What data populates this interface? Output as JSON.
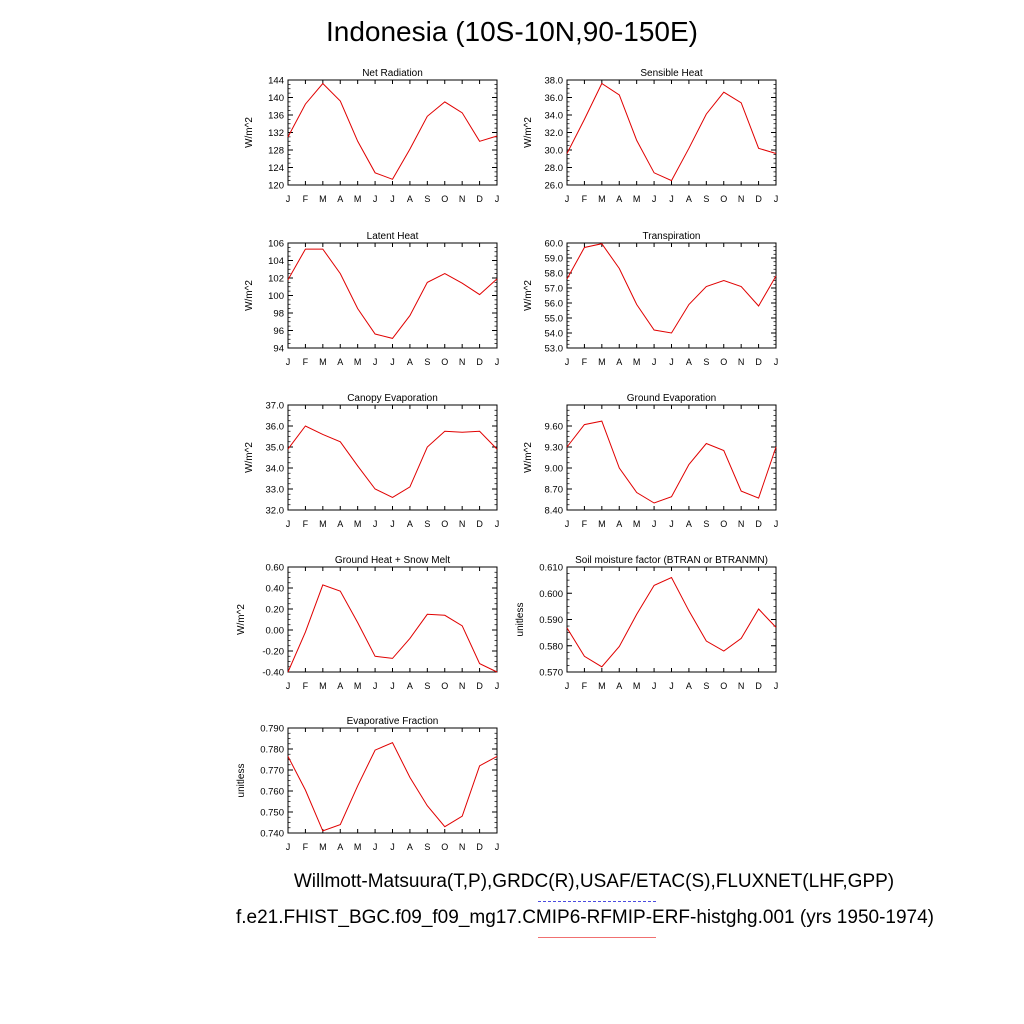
{
  "title": "Indonesia (10S-10N,90-150E)",
  "footer": {
    "obs": "Willmott-Matsuura(T,P),GRDC(R),USAF/ETAC(S),FLUXNET(LHF,GPP)",
    "case": "f.e21.FHIST_BGC.f09_f09_mg17.CMIP6-RFMIP-ERF-histghg.001 (yrs 1950-1974)"
  },
  "colors": {
    "line": "#e00000",
    "obs_dash": "#4b4be0",
    "case_underline": "#f07070"
  },
  "chart_data": [
    {
      "type": "line",
      "title": "Net Radiation",
      "ylabel": "W/m^2",
      "categories": [
        "J",
        "F",
        "M",
        "A",
        "M",
        "J",
        "J",
        "A",
        "S",
        "O",
        "N",
        "D",
        "J"
      ],
      "values": [
        131.0,
        138.5,
        143.2,
        139.2,
        130.0,
        122.8,
        121.3,
        128.2,
        135.7,
        139.0,
        136.5,
        130.0,
        131.2
      ],
      "ylim": [
        120,
        144
      ],
      "yticks": [
        "120",
        "124",
        "128",
        "132",
        "136",
        "140",
        "144"
      ]
    },
    {
      "type": "line",
      "title": "Sensible Heat",
      "ylabel": "W/m^2",
      "categories": [
        "J",
        "F",
        "M",
        "A",
        "M",
        "J",
        "J",
        "A",
        "S",
        "O",
        "N",
        "D",
        "J"
      ],
      "values": [
        29.6,
        33.5,
        37.6,
        36.3,
        31.1,
        27.4,
        26.5,
        30.2,
        34.1,
        36.6,
        35.4,
        30.2,
        29.6
      ],
      "ylim": [
        26.0,
        38.0
      ],
      "yticks": [
        "26.0",
        "28.0",
        "30.0",
        "32.0",
        "34.0",
        "36.0",
        "38.0"
      ]
    },
    {
      "type": "line",
      "title": "Latent Heat",
      "ylabel": "W/m^2",
      "categories": [
        "J",
        "F",
        "M",
        "A",
        "M",
        "J",
        "J",
        "A",
        "S",
        "O",
        "N",
        "D",
        "J"
      ],
      "values": [
        101.8,
        105.3,
        105.3,
        102.5,
        98.5,
        95.6,
        95.1,
        97.7,
        101.5,
        102.5,
        101.4,
        100.1,
        101.9
      ],
      "ylim": [
        94,
        106
      ],
      "yticks": [
        "94",
        "96",
        "98",
        "100",
        "102",
        "104",
        "106"
      ]
    },
    {
      "type": "line",
      "title": "Transpiration",
      "ylabel": "W/m^2",
      "categories": [
        "J",
        "F",
        "M",
        "A",
        "M",
        "J",
        "J",
        "A",
        "S",
        "O",
        "N",
        "D",
        "J"
      ],
      "values": [
        57.6,
        59.7,
        59.95,
        58.3,
        55.9,
        54.2,
        54.0,
        55.9,
        57.1,
        57.5,
        57.1,
        55.8,
        57.8
      ],
      "ylim": [
        53.0,
        60.0
      ],
      "yticks": [
        "53.0",
        "54.0",
        "55.0",
        "56.0",
        "57.0",
        "58.0",
        "59.0",
        "60.0"
      ]
    },
    {
      "type": "line",
      "title": "Canopy Evaporation",
      "ylabel": "W/m^2",
      "categories": [
        "J",
        "F",
        "M",
        "A",
        "M",
        "J",
        "J",
        "A",
        "S",
        "O",
        "N",
        "D",
        "J"
      ],
      "values": [
        34.9,
        36.0,
        35.6,
        35.25,
        34.1,
        33.0,
        32.6,
        33.1,
        35.0,
        35.75,
        35.7,
        35.75,
        34.9
      ],
      "ylim": [
        32.0,
        37.0
      ],
      "yticks": [
        "32.0",
        "33.0",
        "34.0",
        "35.0",
        "36.0",
        "37.0"
      ]
    },
    {
      "type": "line",
      "title": "Ground Evaporation",
      "ylabel": "W/m^2",
      "categories": [
        "J",
        "F",
        "M",
        "A",
        "M",
        "J",
        "J",
        "A",
        "S",
        "O",
        "N",
        "D",
        "J"
      ],
      "values": [
        9.3,
        9.62,
        9.67,
        9.0,
        8.65,
        8.5,
        8.59,
        9.05,
        9.35,
        9.25,
        8.67,
        8.57,
        9.3
      ],
      "ylim": [
        8.4,
        9.9
      ],
      "yticks": [
        "8.40",
        "8.70",
        "9.00",
        "9.30",
        "9.60"
      ]
    },
    {
      "type": "line",
      "title": "Ground Heat + Snow Melt",
      "ylabel": "W/m^2",
      "categories": [
        "J",
        "F",
        "M",
        "A",
        "M",
        "J",
        "J",
        "A",
        "S",
        "O",
        "N",
        "D",
        "J"
      ],
      "values": [
        -0.4,
        -0.02,
        0.43,
        0.37,
        0.07,
        -0.25,
        -0.27,
        -0.08,
        0.15,
        0.14,
        0.04,
        -0.32,
        -0.4
      ],
      "ylim": [
        -0.4,
        0.6
      ],
      "yticks": [
        "-0.40",
        "-0.20",
        "0.00",
        "0.20",
        "0.40",
        "0.60"
      ]
    },
    {
      "type": "line",
      "title": "Soil moisture factor (BTRAN or BTRANMN)",
      "ylabel": "unitless",
      "categories": [
        "J",
        "F",
        "M",
        "A",
        "M",
        "J",
        "J",
        "A",
        "S",
        "O",
        "N",
        "D",
        "J"
      ],
      "values": [
        0.5868,
        0.576,
        0.572,
        0.5797,
        0.592,
        0.603,
        0.606,
        0.5933,
        0.5818,
        0.578,
        0.5828,
        0.594,
        0.587
      ],
      "ylim": [
        0.57,
        0.61
      ],
      "yticks": [
        "0.570",
        "0.580",
        "0.590",
        "0.600",
        "0.610"
      ]
    },
    {
      "type": "line",
      "title": "Evaporative Fraction",
      "ylabel": "unitless",
      "categories": [
        "J",
        "F",
        "M",
        "A",
        "M",
        "J",
        "J",
        "A",
        "S",
        "O",
        "N",
        "D",
        "J"
      ],
      "values": [
        0.7765,
        0.7605,
        0.741,
        0.744,
        0.7625,
        0.7795,
        0.783,
        0.7665,
        0.753,
        0.743,
        0.748,
        0.772,
        0.7765
      ],
      "ylim": [
        0.74,
        0.79
      ],
      "yticks": [
        "0.740",
        "0.750",
        "0.760",
        "0.770",
        "0.780",
        "0.790"
      ]
    }
  ]
}
